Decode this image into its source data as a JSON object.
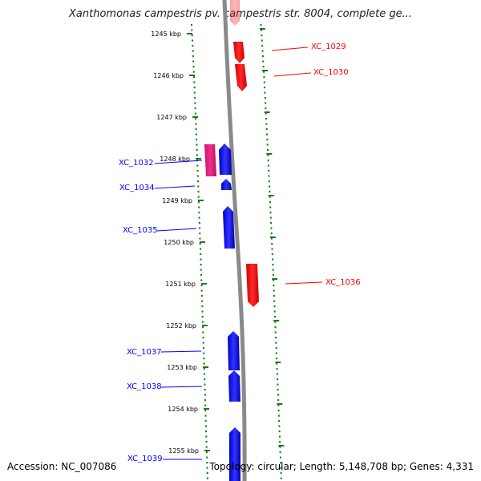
{
  "title": "Xanthomonas campestris pv. campestris str. 8004, complete ge...",
  "footer": {
    "accession": "Accession: NC_007086",
    "topology": "Topology: circular; Length: 5,148,708 bp; Genes: 4,331"
  },
  "colors": {
    "forward_strand": "#ff0000",
    "reverse_strand": "#0000ff",
    "highlight_gene": "#ee1177",
    "scale_ticks": "#1a7a1a",
    "backbone": "#888888"
  },
  "scale": {
    "unit": "kbp",
    "ticks": [
      "1245 kbp",
      "1246 kbp",
      "1247 kbp",
      "1248 kbp",
      "1249 kbp",
      "1250 kbp",
      "1251 kbp",
      "1252 kbp",
      "1253 kbp",
      "1254 kbp",
      "1255 kbp"
    ]
  },
  "genes": [
    {
      "label": "XC_1029",
      "strand": "forward"
    },
    {
      "label": "XC_1030",
      "strand": "forward"
    },
    {
      "label": "XC_1032",
      "strand": "reverse"
    },
    {
      "label": "XC_1034",
      "strand": "reverse"
    },
    {
      "label": "XC_1035",
      "strand": "reverse"
    },
    {
      "label": "XC_1036",
      "strand": "forward"
    },
    {
      "label": "XC_1037",
      "strand": "reverse"
    },
    {
      "label": "XC_1038",
      "strand": "reverse"
    },
    {
      "label": "XC_1039",
      "strand": "reverse"
    }
  ]
}
